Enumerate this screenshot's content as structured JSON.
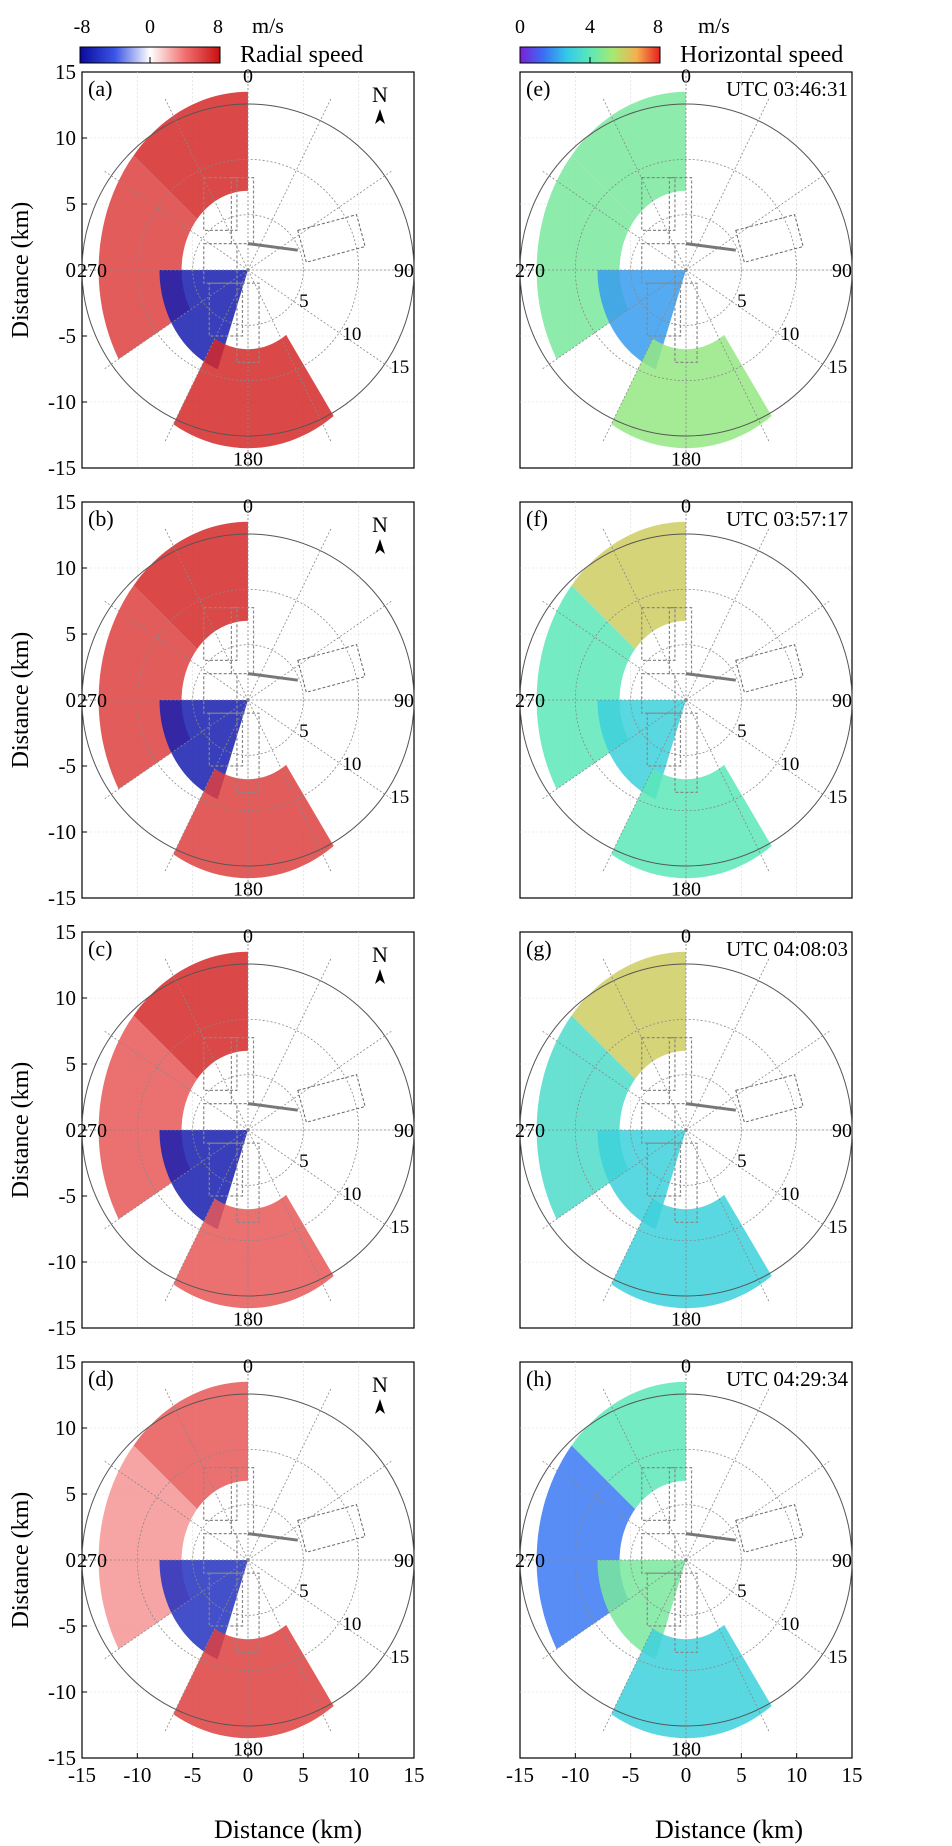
{
  "figure": {
    "colorbars": [
      {
        "unit": "m/s",
        "ticks": [
          "-8",
          "0",
          "8"
        ],
        "label": "Radial speed",
        "colors": [
          "#0a0a9c",
          "#3b55e6",
          "#ffffff",
          "#f27070",
          "#c81010"
        ]
      },
      {
        "unit": "m/s",
        "ticks": [
          "0",
          "4",
          "8"
        ],
        "label": "Horizontal speed",
        "colors": [
          "#7a1fd8",
          "#3b6ef5",
          "#33c9e8",
          "#5ce8b8",
          "#a8e870",
          "#f5b050",
          "#e62020"
        ]
      }
    ],
    "x_label": "Distance (km)",
    "y_label": "Distance (km)",
    "x_ticks": [
      "-15",
      "-10",
      "-5",
      "0",
      "5",
      "10",
      "15"
    ],
    "x_ticks_right": [
      "-15",
      "-10",
      "-5",
      "0",
      "5",
      "10",
      "15"
    ],
    "y_ticks": [
      "15",
      "10",
      "5",
      "0",
      "-5",
      "-10",
      "-15"
    ],
    "azimuth_labels": {
      "north": "0",
      "east": "90",
      "south": "180",
      "west": "270"
    },
    "range_ring_labels": [
      "5",
      "10",
      "15"
    ],
    "north_label": "N"
  },
  "chart_data": [
    {
      "type": "heatmap",
      "panel": "(a)",
      "quantity": "Radial speed",
      "xlim": [
        -15,
        15
      ],
      "ylim": [
        -15,
        15
      ],
      "grid": true,
      "values_range": [
        -8,
        8
      ],
      "regions": [
        {
          "sector": "north-west sector",
          "value": 7
        },
        {
          "sector": "west",
          "value": 6
        },
        {
          "sector": "center-west",
          "value": -7
        },
        {
          "sector": "south",
          "value": 7
        }
      ]
    },
    {
      "type": "heatmap",
      "panel": "(b)",
      "quantity": "Radial speed",
      "xlim": [
        -15,
        15
      ],
      "ylim": [
        -15,
        15
      ],
      "grid": true,
      "values_range": [
        -8,
        8
      ],
      "regions": [
        {
          "sector": "north-west sector",
          "value": 7
        },
        {
          "sector": "west",
          "value": 6
        },
        {
          "sector": "center-west",
          "value": -7
        },
        {
          "sector": "south",
          "value": 6
        }
      ]
    },
    {
      "type": "heatmap",
      "panel": "(c)",
      "quantity": "Radial speed",
      "xlim": [
        -15,
        15
      ],
      "ylim": [
        -15,
        15
      ],
      "grid": true,
      "values_range": [
        -8,
        8
      ],
      "regions": [
        {
          "sector": "north-west sector",
          "value": 7
        },
        {
          "sector": "west",
          "value": 5
        },
        {
          "sector": "center-west",
          "value": -7
        },
        {
          "sector": "south",
          "value": 5
        }
      ]
    },
    {
      "type": "heatmap",
      "panel": "(d)",
      "quantity": "Radial speed",
      "xlim": [
        -15,
        15
      ],
      "ylim": [
        -15,
        15
      ],
      "grid": true,
      "values_range": [
        -8,
        8
      ],
      "regions": [
        {
          "sector": "north-west sector",
          "value": 5
        },
        {
          "sector": "west",
          "value": 3
        },
        {
          "sector": "center-west",
          "value": -6
        },
        {
          "sector": "south",
          "value": 6
        }
      ]
    },
    {
      "type": "heatmap",
      "panel": "(e)",
      "quantity": "Horizontal speed",
      "timestamp": "UTC 03:46:31",
      "xlim": [
        -15,
        15
      ],
      "ylim": [
        -15,
        15
      ],
      "grid": true,
      "values_range": [
        0,
        8
      ],
      "regions": [
        {
          "sector": "north-west sector",
          "value": 4.5
        },
        {
          "sector": "west",
          "value": 4.5
        },
        {
          "sector": "center-west",
          "value": 2
        },
        {
          "sector": "south",
          "value": 5
        }
      ]
    },
    {
      "type": "heatmap",
      "panel": "(f)",
      "quantity": "Horizontal speed",
      "timestamp": "UTC 03:57:17",
      "xlim": [
        -15,
        15
      ],
      "ylim": [
        -15,
        15
      ],
      "grid": true,
      "values_range": [
        0,
        8
      ],
      "regions": [
        {
          "sector": "north-west sector",
          "value": 6
        },
        {
          "sector": "west",
          "value": 4
        },
        {
          "sector": "center-west",
          "value": 3
        },
        {
          "sector": "south",
          "value": 4
        }
      ]
    },
    {
      "type": "heatmap",
      "panel": "(g)",
      "quantity": "Horizontal speed",
      "timestamp": "UTC 04:08:03",
      "xlim": [
        -15,
        15
      ],
      "ylim": [
        -15,
        15
      ],
      "grid": true,
      "values_range": [
        0,
        8
      ],
      "regions": [
        {
          "sector": "north-west sector",
          "value": 6
        },
        {
          "sector": "west",
          "value": 3.5
        },
        {
          "sector": "center-west",
          "value": 3
        },
        {
          "sector": "south",
          "value": 3
        }
      ]
    },
    {
      "type": "heatmap",
      "panel": "(h)",
      "quantity": "Horizontal speed",
      "timestamp": "UTC 04:29:34",
      "xlim": [
        -15,
        15
      ],
      "ylim": [
        -15,
        15
      ],
      "grid": true,
      "values_range": [
        0,
        8
      ],
      "regions": [
        {
          "sector": "north-west sector",
          "value": 4
        },
        {
          "sector": "west",
          "value": 1.5
        },
        {
          "sector": "center-west",
          "value": 4.5
        },
        {
          "sector": "south",
          "value": 3
        }
      ]
    }
  ]
}
